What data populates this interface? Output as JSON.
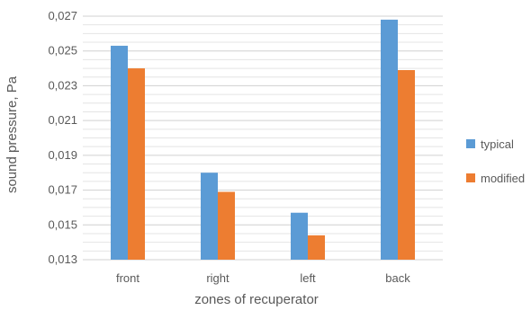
{
  "chart_data": {
    "type": "bar",
    "categories": [
      "front",
      "right",
      "left",
      "back"
    ],
    "series": [
      {
        "name": "typical",
        "values": [
          0.0253,
          0.018,
          0.0157,
          0.0268
        ],
        "color": "#5B9BD5"
      },
      {
        "name": "modified",
        "values": [
          0.024,
          0.0169,
          0.0144,
          0.0239
        ],
        "color": "#ED7D31"
      }
    ],
    "yticks": [
      "0,013",
      "0,015",
      "0,017",
      "0,019",
      "0,021",
      "0,023",
      "0,025",
      "0,027"
    ],
    "ylim": [
      0.013,
      0.027
    ],
    "minor_grid_step": 0.0005,
    "xlabel": "zones of recuperator",
    "ylabel": "sound pressure, Pa",
    "legend_position": "right",
    "grid": true
  }
}
